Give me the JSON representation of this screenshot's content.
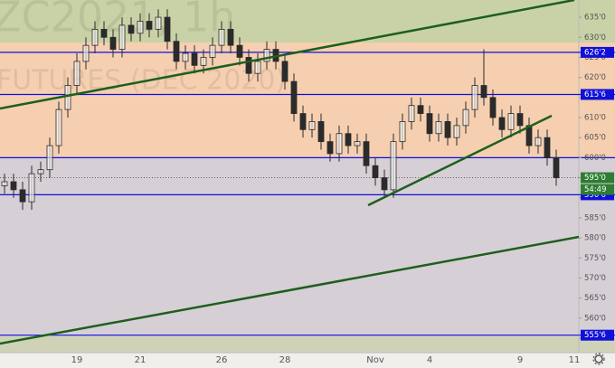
{
  "chart_data": {
    "type": "candlestick",
    "watermark": [
      "ZC2021, 1h",
      "FUTURES (DEC 2020)"
    ],
    "categories": [
      null,
      null,
      null,
      null,
      null,
      null,
      null,
      null,
      "19",
      null,
      null,
      null,
      null,
      null,
      null,
      "21",
      null,
      null,
      null,
      null,
      null,
      null,
      null,
      null,
      "26",
      null,
      null,
      null,
      null,
      null,
      null,
      "28",
      null,
      null,
      null,
      null,
      null,
      null,
      null,
      null,
      null,
      "Nov",
      null,
      null,
      null,
      null,
      null,
      "4",
      null,
      null,
      null,
      null,
      null,
      null,
      null,
      null,
      null,
      "9",
      null,
      null,
      null,
      null,
      null,
      "11"
    ],
    "open": [
      593,
      594,
      592,
      589,
      596,
      597,
      603,
      612,
      618,
      624,
      628,
      632,
      630,
      627,
      633,
      631,
      634,
      632,
      635,
      629,
      624,
      626,
      623,
      625,
      628,
      632,
      628,
      625,
      621,
      624,
      627,
      624,
      619,
      611,
      607,
      609,
      604,
      601,
      606,
      603,
      604,
      598,
      595,
      592,
      604,
      609,
      613,
      611,
      606,
      609,
      605,
      608,
      612,
      618,
      615,
      610,
      607,
      611,
      608,
      603,
      605,
      600,
      null,
      null
    ],
    "high": [
      596,
      596,
      594,
      598,
      599,
      605,
      614,
      620,
      626,
      630,
      634,
      634,
      632,
      635,
      635,
      636,
      636,
      637,
      637,
      631,
      628,
      628,
      627,
      630,
      634,
      634,
      630,
      627,
      626,
      629,
      629,
      626,
      621,
      613,
      611,
      611,
      606,
      608,
      608,
      606,
      606,
      600,
      597,
      606,
      611,
      615,
      615,
      613,
      611,
      611,
      610,
      614,
      620,
      627,
      617,
      612,
      613,
      613,
      610,
      607,
      607,
      602,
      null,
      null
    ],
    "low": [
      591,
      590,
      587,
      587,
      594,
      595,
      601,
      610,
      616,
      622,
      626,
      628,
      625,
      625,
      629,
      629,
      630,
      630,
      627,
      622,
      622,
      621,
      621,
      623,
      626,
      626,
      623,
      619,
      619,
      622,
      622,
      617,
      609,
      605,
      605,
      602,
      599,
      599,
      601,
      601,
      596,
      593,
      590,
      590,
      602,
      607,
      609,
      604,
      604,
      603,
      603,
      606,
      610,
      613,
      608,
      605,
      605,
      606,
      601,
      601,
      598,
      593,
      null,
      null
    ],
    "close": [
      594,
      592,
      589,
      596,
      597,
      603,
      612,
      618,
      624,
      628,
      632,
      630,
      627,
      633,
      631,
      634,
      632,
      635,
      629,
      624,
      626,
      623,
      625,
      628,
      632,
      628,
      625,
      621,
      624,
      627,
      624,
      619,
      611,
      607,
      609,
      604,
      601,
      606,
      603,
      604,
      598,
      595,
      592,
      604,
      609,
      613,
      611,
      606,
      609,
      605,
      608,
      612,
      618,
      615,
      610,
      607,
      611,
      608,
      603,
      605,
      600,
      595,
      null,
      null
    ],
    "color": "#2b2b2b",
    "ylim": [
      551.4,
      639.3
    ],
    "yticks": [
      {
        "value": 555,
        "label": "555'0"
      },
      {
        "value": 560,
        "label": "560'0"
      },
      {
        "value": 565,
        "label": "565'0"
      },
      {
        "value": 570,
        "label": "570'0"
      },
      {
        "value": 575,
        "label": "575'0"
      },
      {
        "value": 580,
        "label": "580'0"
      },
      {
        "value": 585,
        "label": "585'0"
      },
      {
        "value": 590,
        "label": "590'0"
      },
      {
        "value": 595,
        "label": "595'0"
      },
      {
        "value": 600,
        "label": "600'0"
      },
      {
        "value": 605,
        "label": "605'0"
      },
      {
        "value": 610,
        "label": "610'0"
      },
      {
        "value": 615,
        "label": "615'0"
      },
      {
        "value": 620,
        "label": "620'0"
      },
      {
        "value": 625,
        "label": "625'0"
      },
      {
        "value": 630,
        "label": "630'0"
      },
      {
        "value": 635,
        "label": "635'0"
      }
    ],
    "levels": [
      626.25,
      615.75,
      600,
      590.75,
      555.75
    ],
    "level_labels": [
      "626'2",
      "615'6",
      null,
      "590'6",
      "555'6"
    ],
    "level_color": "#1010d8",
    "last_price": {
      "value": 595,
      "label": "595'0"
    },
    "countdown": "54:49"
  }
}
